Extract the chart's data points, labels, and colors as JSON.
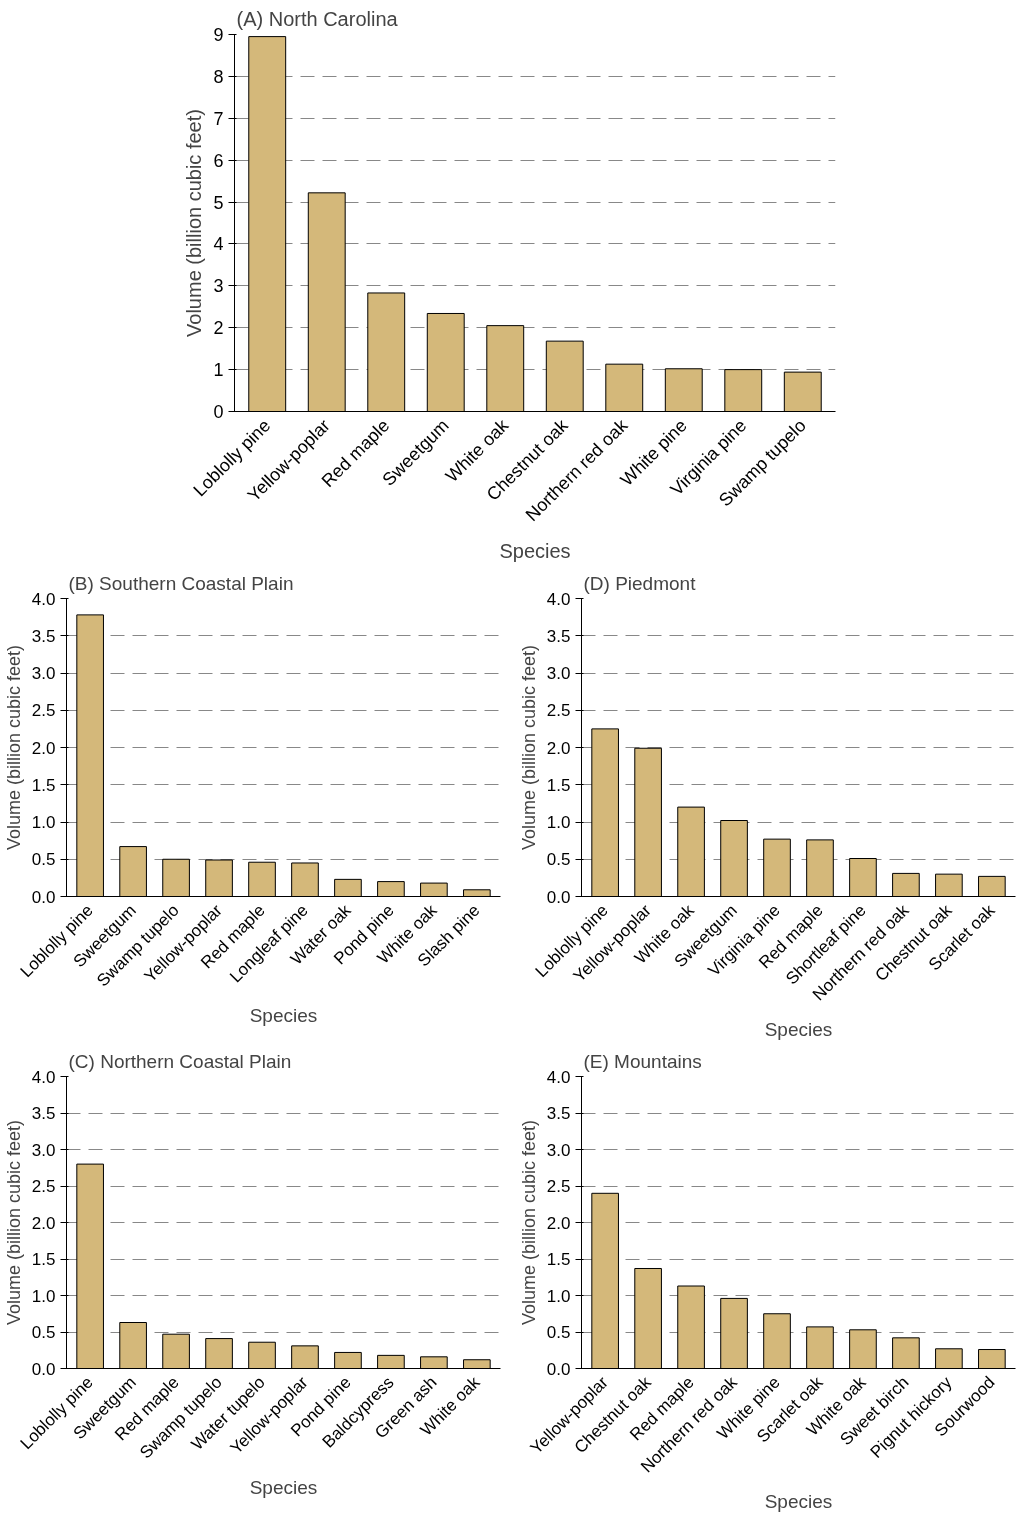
{
  "chart_data": [
    {
      "type": "bar",
      "title": "(A) North Carolina",
      "xlabel": "Species",
      "ylabel": "Volume (billion cubic feet)",
      "categories": [
        "Loblolly pine",
        "Yellow-poplar",
        "Red maple",
        "Sweetgum",
        "White oak",
        "Chestnut oak",
        "Northern red oak",
        "White pine",
        "Virginia pine",
        "Swamp tupelo"
      ],
      "values": [
        8.95,
        5.22,
        2.83,
        2.34,
        2.05,
        1.68,
        1.13,
        1.02,
        1.0,
        0.94
      ],
      "color": "#d4b87a",
      "ylim": [
        0,
        9
      ],
      "yticks": [
        0,
        1,
        2,
        3,
        4,
        5,
        6,
        7,
        8,
        9
      ],
      "grid": "y"
    },
    {
      "type": "bar",
      "title": "(B) Southern Coastal Plain",
      "xlabel": "Species",
      "ylabel": "Volume (billion cubic feet)",
      "categories": [
        "Loblolly pine",
        "Sweetgum",
        "Swamp tupelo",
        "Yellow-poplar",
        "Red maple",
        "Longleaf pine",
        "Water oak",
        "Pond pine",
        "White oak",
        "Slash pine"
      ],
      "values": [
        3.78,
        0.67,
        0.5,
        0.49,
        0.46,
        0.45,
        0.23,
        0.2,
        0.18,
        0.09
      ],
      "color": "#d4b87a",
      "ylim": [
        0,
        4
      ],
      "yticks": [
        {
          "value": 0,
          "label": "0.0"
        },
        {
          "value": 0.5,
          "label": "0.5"
        },
        {
          "value": 1,
          "label": "1.0"
        },
        {
          "value": 1.5,
          "label": "1.5"
        },
        {
          "value": 2,
          "label": "2.0"
        },
        {
          "value": 2.5,
          "label": "2.5"
        },
        {
          "value": 3,
          "label": "3.0"
        },
        {
          "value": 3.5,
          "label": "3.5"
        },
        {
          "value": 4,
          "label": "4.0"
        }
      ],
      "grid": "y"
    },
    {
      "type": "bar",
      "title": "(D) Piedmont",
      "xlabel": "Species",
      "ylabel": "Volume (billion cubic feet)",
      "categories": [
        "Loblolly pine",
        "Yellow-poplar",
        "White oak",
        "Sweetgum",
        "Virginia pine",
        "Red maple",
        "Shortleaf pine",
        "Northern red oak",
        "Chestnut oak",
        "Scarlet oak"
      ],
      "values": [
        2.25,
        1.99,
        1.2,
        1.02,
        0.77,
        0.76,
        0.51,
        0.31,
        0.3,
        0.27
      ],
      "color": "#d4b87a",
      "ylim": [
        0,
        4
      ],
      "yticks": [
        {
          "value": 0,
          "label": "0.0"
        },
        {
          "value": 0.5,
          "label": "0.5"
        },
        {
          "value": 1,
          "label": "1.0"
        },
        {
          "value": 1.5,
          "label": "1.5"
        },
        {
          "value": 2,
          "label": "2.0"
        },
        {
          "value": 2.5,
          "label": "2.5"
        },
        {
          "value": 3,
          "label": "3.0"
        },
        {
          "value": 3.5,
          "label": "3.5"
        },
        {
          "value": 4,
          "label": "4.0"
        }
      ],
      "grid": "y"
    },
    {
      "type": "bar",
      "title": "(C) Northern Coastal Plain",
      "xlabel": "Species",
      "ylabel": "Volume (billion cubic feet)",
      "categories": [
        "Loblolly pine",
        "Sweetgum",
        "Red maple",
        "Swamp tupelo",
        "Water tupelo",
        "Yellow-poplar",
        "Pond pine",
        "Baldcypress",
        "Green ash",
        "White oak"
      ],
      "values": [
        2.8,
        0.63,
        0.47,
        0.41,
        0.36,
        0.31,
        0.22,
        0.18,
        0.16,
        0.12
      ],
      "color": "#d4b87a",
      "ylim": [
        0,
        4
      ],
      "yticks": [
        {
          "value": 0,
          "label": "0.0"
        },
        {
          "value": 0.5,
          "label": "0.5"
        },
        {
          "value": 1,
          "label": "1.0"
        },
        {
          "value": 1.5,
          "label": "1.5"
        },
        {
          "value": 2,
          "label": "2.0"
        },
        {
          "value": 2.5,
          "label": "2.5"
        },
        {
          "value": 3,
          "label": "3.0"
        },
        {
          "value": 3.5,
          "label": "3.5"
        },
        {
          "value": 4,
          "label": "4.0"
        }
      ],
      "grid": "y"
    },
    {
      "type": "bar",
      "title": "(E) Mountains",
      "xlabel": "Species",
      "ylabel": "Volume (billion cubic feet)",
      "categories": [
        "Yellow-poplar",
        "Chestnut oak",
        "Red maple",
        "Northern red oak",
        "White pine",
        "Scarlet oak",
        "White oak",
        "Sweet birch",
        "Pignut hickory",
        "Sourwood"
      ],
      "values": [
        2.4,
        1.37,
        1.13,
        0.96,
        0.75,
        0.57,
        0.53,
        0.42,
        0.27,
        0.26
      ],
      "color": "#d4b87a",
      "ylim": [
        0,
        4
      ],
      "yticks": [
        {
          "value": 0,
          "label": "0.0"
        },
        {
          "value": 0.5,
          "label": "0.5"
        },
        {
          "value": 1,
          "label": "1.0"
        },
        {
          "value": 1.5,
          "label": "1.5"
        },
        {
          "value": 2,
          "label": "2.0"
        },
        {
          "value": 2.5,
          "label": "2.5"
        },
        {
          "value": 3,
          "label": "3.0"
        },
        {
          "value": 3.5,
          "label": "3.5"
        },
        {
          "value": 4,
          "label": "4.0"
        }
      ],
      "grid": "y"
    }
  ]
}
